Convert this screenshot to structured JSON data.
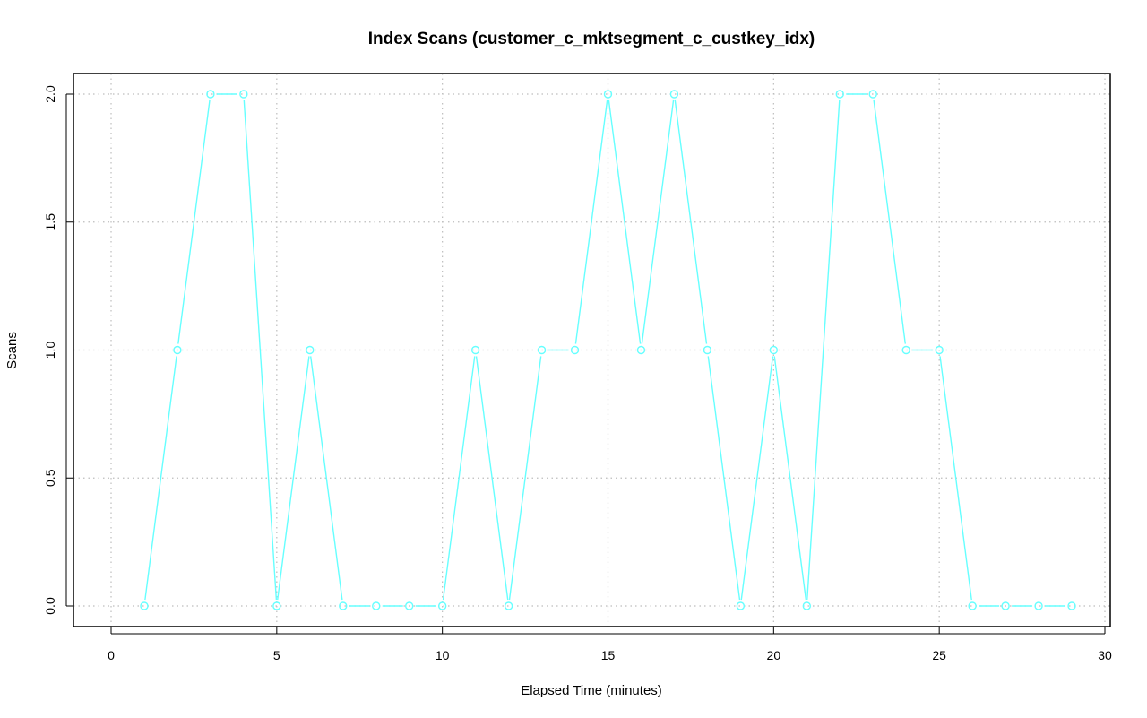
{
  "chart_data": {
    "type": "line",
    "title": "Index Scans (customer_c_mktsegment_c_custkey_idx)",
    "xlabel": "Elapsed Time (minutes)",
    "ylabel": "Scans",
    "xlim": [
      0,
      30
    ],
    "ylim": [
      0,
      2
    ],
    "x_ticks": [
      "0",
      "5",
      "10",
      "15",
      "20",
      "25",
      "30"
    ],
    "y_ticks": [
      "0.0",
      "0.5",
      "1.0",
      "1.5",
      "2.0"
    ],
    "grid": true,
    "series": [
      {
        "color": "#66ffff",
        "marker": "open-circle",
        "x": [
          1,
          2,
          3,
          4,
          5,
          6,
          7,
          8,
          9,
          10,
          11,
          12,
          13,
          14,
          15,
          16,
          17,
          18,
          19,
          20,
          21,
          22,
          23,
          24,
          25,
          26,
          27,
          28,
          29
        ],
        "y": [
          0,
          1,
          2,
          2,
          0,
          1,
          0,
          0,
          0,
          0,
          1,
          0,
          1,
          1,
          2,
          1,
          2,
          1,
          0,
          1,
          0,
          2,
          2,
          1,
          1,
          0,
          0,
          0,
          0
        ]
      }
    ]
  }
}
